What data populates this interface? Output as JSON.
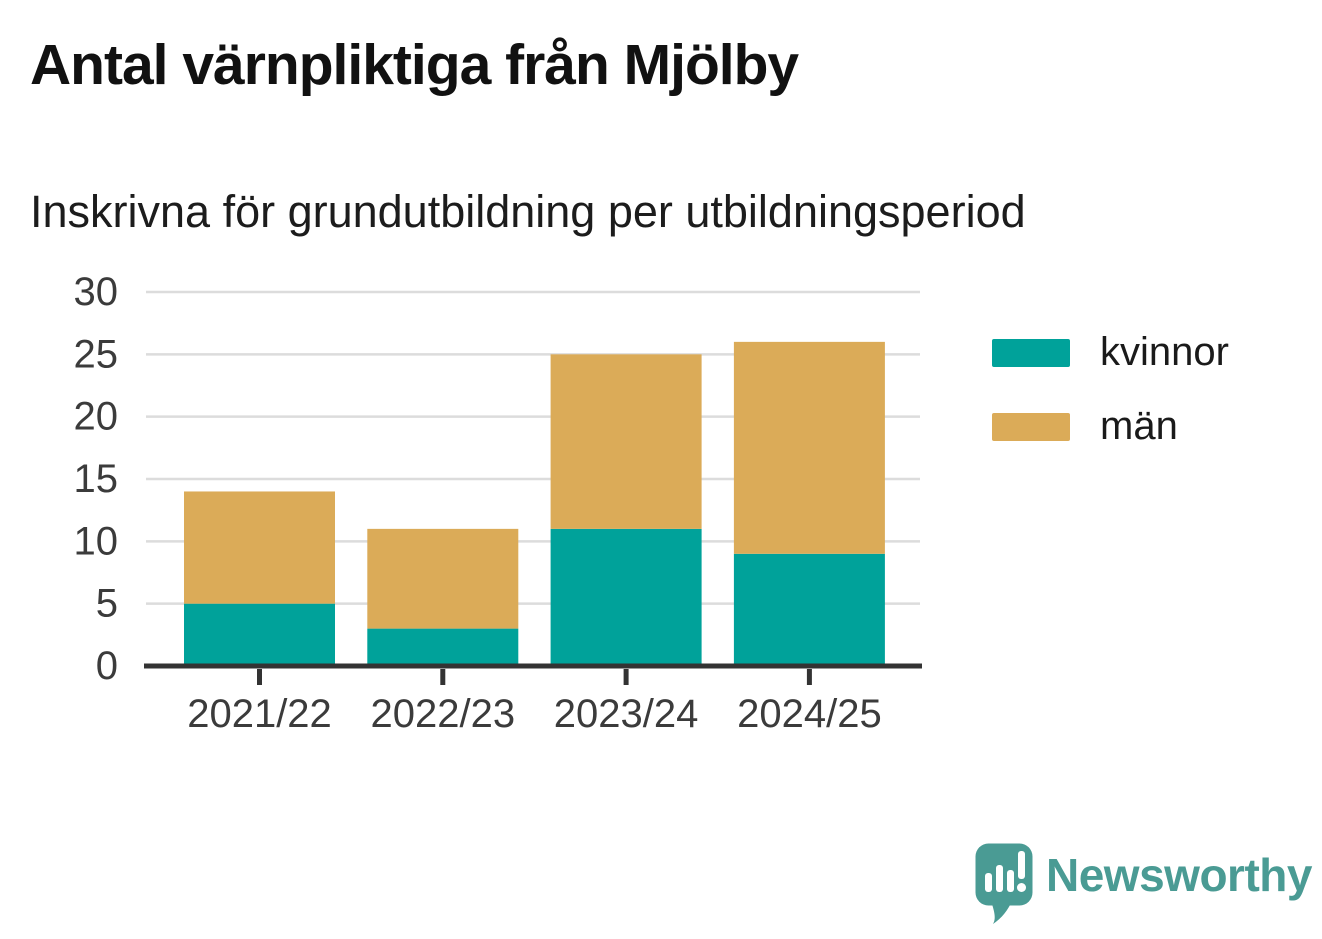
{
  "chart_data": {
    "type": "bar",
    "stacked": true,
    "title": "Antal värnpliktiga från Mjölby",
    "subtitle": "Inskrivna för grundutbildning per utbildningsperiod",
    "categories": [
      "2021/22",
      "2022/23",
      "2023/24",
      "2024/25"
    ],
    "series": [
      {
        "name": "kvinnor",
        "color": "#00a29a",
        "values": [
          5,
          3,
          11,
          9
        ]
      },
      {
        "name": "män",
        "color": "#dbab58",
        "values": [
          9,
          8,
          14,
          17
        ]
      }
    ],
    "totals": [
      14,
      11,
      25,
      26
    ],
    "xlabel": "",
    "ylabel": "",
    "ylim": [
      0,
      30
    ],
    "yticks": [
      0,
      5,
      10,
      15,
      20,
      25,
      30
    ],
    "grid": true,
    "grid_color": "#dcdcdc",
    "axis_color": "#333333",
    "tick_label_color": "#3b3b3b",
    "legend_position": "right"
  },
  "branding": {
    "name": "Newsworthy",
    "color": "#4a9b94"
  }
}
